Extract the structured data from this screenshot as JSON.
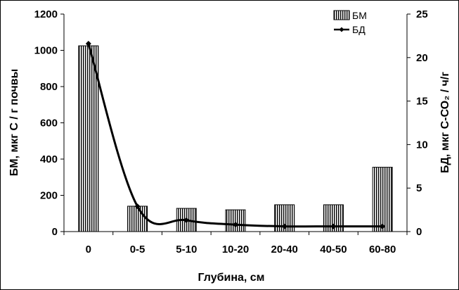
{
  "chart_data": {
    "type": "bar",
    "categories": [
      "0",
      "0-5",
      "5-10",
      "10-20",
      "20-40",
      "40-50",
      "60-80"
    ],
    "series": [
      {
        "name": "БМ",
        "kind": "bar",
        "axis": "left",
        "values": [
          1025,
          140,
          128,
          120,
          148,
          148,
          355
        ]
      },
      {
        "name": "БД",
        "kind": "line",
        "axis": "right",
        "values": [
          21.6,
          2.9,
          1.3,
          0.8,
          0.6,
          0.6,
          0.6
        ]
      }
    ],
    "xlabel": "Глубина, см",
    "ylabel": "БМ, мкг С / г почвы",
    "y2label": "БД, мкг С-СО₂ / ч/г",
    "ylim": [
      0,
      1200
    ],
    "yticks": [
      0,
      200,
      400,
      600,
      800,
      1000,
      1200
    ],
    "y2lim": [
      0,
      25
    ],
    "y2ticks": [
      0,
      5,
      10,
      15,
      20,
      25
    ],
    "legend_position": "top-right",
    "grid": false,
    "colors": {
      "bar_fill": "#ffffff",
      "bar_stripe": "#000000",
      "line": "#000000"
    }
  }
}
